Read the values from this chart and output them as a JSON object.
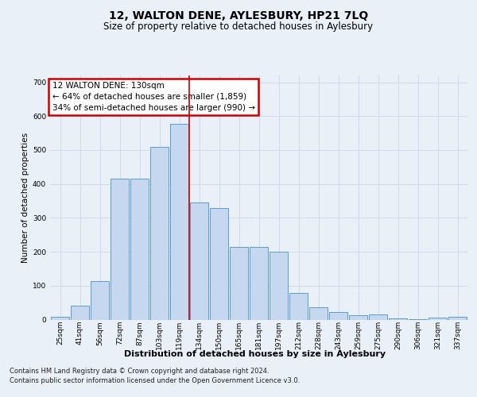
{
  "title": "12, WALTON DENE, AYLESBURY, HP21 7LQ",
  "subtitle": "Size of property relative to detached houses in Aylesbury",
  "xlabel": "Distribution of detached houses by size in Aylesbury",
  "ylabel": "Number of detached properties",
  "categories": [
    "25sqm",
    "41sqm",
    "56sqm",
    "72sqm",
    "87sqm",
    "103sqm",
    "119sqm",
    "134sqm",
    "150sqm",
    "165sqm",
    "181sqm",
    "197sqm",
    "212sqm",
    "228sqm",
    "243sqm",
    "259sqm",
    "275sqm",
    "290sqm",
    "306sqm",
    "321sqm",
    "337sqm"
  ],
  "values": [
    8,
    40,
    113,
    416,
    415,
    510,
    578,
    345,
    328,
    215,
    215,
    200,
    78,
    37,
    22,
    13,
    15,
    3,
    2,
    5,
    8
  ],
  "bar_color": "#c5d8f0",
  "bar_edge_color": "#5b9bd5",
  "vline_x_idx": 6.5,
  "vline_color": "#cc0000",
  "annotation_line1": "12 WALTON DENE: 130sqm",
  "annotation_line2": "← 64% of detached houses are smaller (1,859)",
  "annotation_line3": "34% of semi-detached houses are larger (990) →",
  "annotation_box_edgecolor": "#cc0000",
  "ylim": [
    0,
    720
  ],
  "yticks": [
    0,
    100,
    200,
    300,
    400,
    500,
    600,
    700
  ],
  "grid_color": "#cdd6e8",
  "bg_color": "#eaf0f8",
  "title_fontsize": 10,
  "subtitle_fontsize": 8.5,
  "ylabel_fontsize": 7.5,
  "xlabel_fontsize": 8,
  "tick_fontsize": 6.5,
  "ann_fontsize": 7.5,
  "footnote1": "Contains HM Land Registry data © Crown copyright and database right 2024.",
  "footnote2": "Contains public sector information licensed under the Open Government Licence v3.0.",
  "footnote_fontsize": 6
}
